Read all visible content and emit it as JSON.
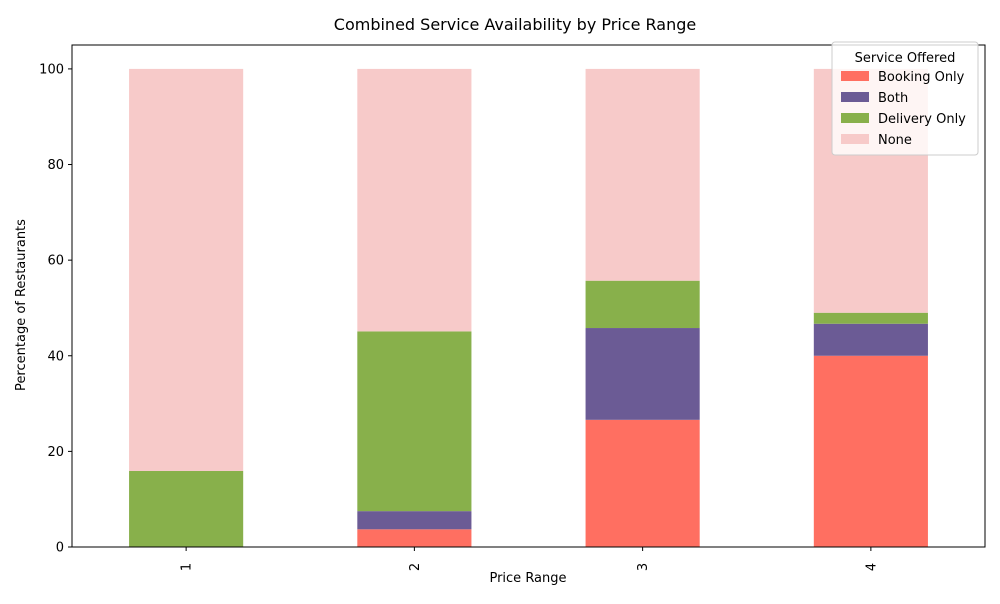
{
  "chart_data": {
    "type": "bar",
    "stacked": true,
    "title": "Combined Service Availability by Price Range",
    "xlabel": "Price Range",
    "ylabel": "Percentage of Restaurants",
    "categories": [
      "1",
      "2",
      "3",
      "4"
    ],
    "ylim": [
      0,
      105
    ],
    "yticks": [
      "0",
      "20",
      "40",
      "60",
      "80",
      "100"
    ],
    "legend_title": "Service Offered",
    "legend_position": "top-right",
    "grid": false,
    "series": [
      {
        "name": "Booking Only",
        "color": "#ff6f61",
        "values": [
          0,
          3.7,
          26.6,
          40.0
        ]
      },
      {
        "name": "Both",
        "color": "#6b5b95",
        "values": [
          0,
          3.8,
          19.2,
          6.7
        ]
      },
      {
        "name": "Delivery Only",
        "color": "#88b04b",
        "values": [
          15.9,
          37.6,
          9.9,
          2.3
        ]
      },
      {
        "name": "None",
        "color": "#f7cac9",
        "values": [
          84.1,
          54.9,
          44.3,
          51.0
        ]
      }
    ]
  }
}
